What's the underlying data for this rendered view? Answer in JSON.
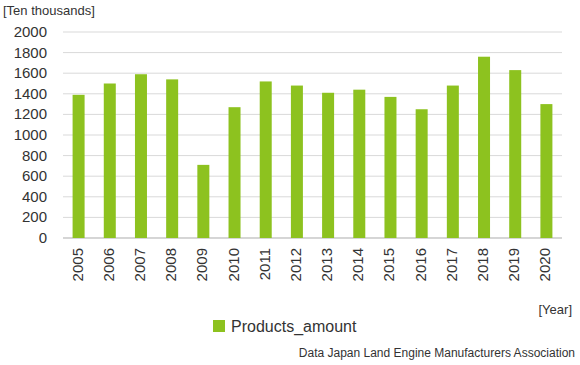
{
  "chart_data": {
    "type": "bar",
    "y_label": "[Ten thousands]",
    "x_label": "[Year]",
    "source": "Data  Japan Land Engine Manufacturers Association",
    "categories": [
      "2005",
      "2006",
      "2007",
      "2008",
      "2009",
      "2010",
      "2011",
      "2012",
      "2013",
      "2014",
      "2015",
      "2016",
      "2017",
      "2018",
      "2019",
      "2020"
    ],
    "series": [
      {
        "name": "Products_amount",
        "color": "#8dc21f",
        "values": [
          1390,
          1500,
          1590,
          1540,
          710,
          1270,
          1520,
          1480,
          1410,
          1440,
          1370,
          1250,
          1480,
          1760,
          1630,
          1300
        ]
      }
    ],
    "ylim": [
      0,
      2000
    ],
    "yticks": [
      0,
      200,
      400,
      600,
      800,
      1000,
      1200,
      1400,
      1600,
      1800,
      2000
    ],
    "grid": true,
    "legend": "bottom"
  }
}
